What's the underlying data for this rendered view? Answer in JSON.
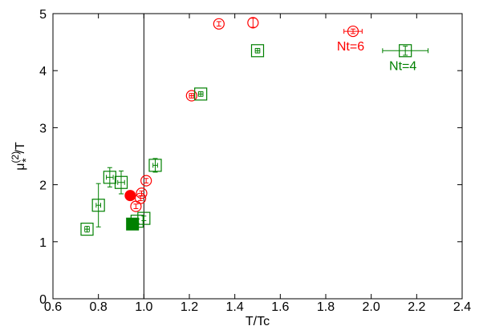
{
  "chart_data": {
    "type": "scatter",
    "title": "",
    "xlabel": "T/Tc",
    "ylabel_main": "μ",
    "ylabel_sup": "(2)",
    "ylabel_sub": "*",
    "ylabel_tail": "/T",
    "xlim": [
      0.6,
      2.4
    ],
    "ylim": [
      0,
      5
    ],
    "x_ticks": [
      "0.6",
      "0.8",
      "1.0",
      "1.2",
      "1.4",
      "1.6",
      "1.8",
      "2.0",
      "2.2",
      "2.4"
    ],
    "y_ticks": [
      "0",
      "1",
      "2",
      "3",
      "4",
      "5"
    ],
    "grid": false,
    "reference_line": {
      "x": 1.0
    },
    "series": [
      {
        "name": "Nt=6",
        "color": "#ff0000",
        "marker": "circle-plus",
        "points": [
          {
            "x": 0.965,
            "y": 1.62,
            "xerr": 0,
            "yerr": 0.04
          },
          {
            "x": 0.985,
            "y": 1.76,
            "xerr": 0,
            "yerr": 0.04
          },
          {
            "x": 0.99,
            "y": 1.85,
            "xerr": 0,
            "yerr": 0.04
          },
          {
            "x": 1.01,
            "y": 2.07,
            "xerr": 0,
            "yerr": 0.04
          },
          {
            "x": 1.21,
            "y": 3.56,
            "xerr": 0.01,
            "yerr": 0.04
          },
          {
            "x": 1.33,
            "y": 4.82,
            "xerr": 0,
            "yerr": 0.04
          },
          {
            "x": 1.48,
            "y": 4.84,
            "xerr": 0,
            "yerr": 0.08
          },
          {
            "x": 1.92,
            "y": 4.69,
            "xerr": 0.04,
            "yerr": 0.04
          }
        ],
        "filled_point": {
          "x": 0.94,
          "y": 1.81
        }
      },
      {
        "name": "Nt=4",
        "color": "#008000",
        "marker": "square-plus",
        "points": [
          {
            "x": 0.75,
            "y": 1.22,
            "xerr": 0.01,
            "yerr": 0.05
          },
          {
            "x": 0.8,
            "y": 1.64,
            "xerr": 0.01,
            "yerr": 0.38
          },
          {
            "x": 0.85,
            "y": 2.13,
            "xerr": 0.015,
            "yerr": 0.17
          },
          {
            "x": 0.9,
            "y": 2.04,
            "xerr": 0.015,
            "yerr": 0.2
          },
          {
            "x": 0.97,
            "y": 1.36,
            "xerr": 0,
            "yerr": 0.04
          },
          {
            "x": 1.0,
            "y": 1.41,
            "xerr": 0,
            "yerr": 0.04
          },
          {
            "x": 1.05,
            "y": 2.34,
            "xerr": 0.01,
            "yerr": 0.12
          },
          {
            "x": 1.25,
            "y": 3.59,
            "xerr": 0.01,
            "yerr": 0.04
          },
          {
            "x": 1.5,
            "y": 4.35,
            "xerr": 0.01,
            "yerr": 0.04
          },
          {
            "x": 2.15,
            "y": 4.35,
            "xerr": 0.1,
            "yerr": 0.08
          }
        ],
        "filled_point": {
          "x": 0.95,
          "y": 1.31
        }
      }
    ],
    "annotations": [
      {
        "text": "Nt=6",
        "color": "#ff0000",
        "x": 1.92,
        "y": 4.69
      },
      {
        "text": "Nt=4",
        "color": "#008000",
        "x": 2.15,
        "y": 4.35
      }
    ]
  }
}
